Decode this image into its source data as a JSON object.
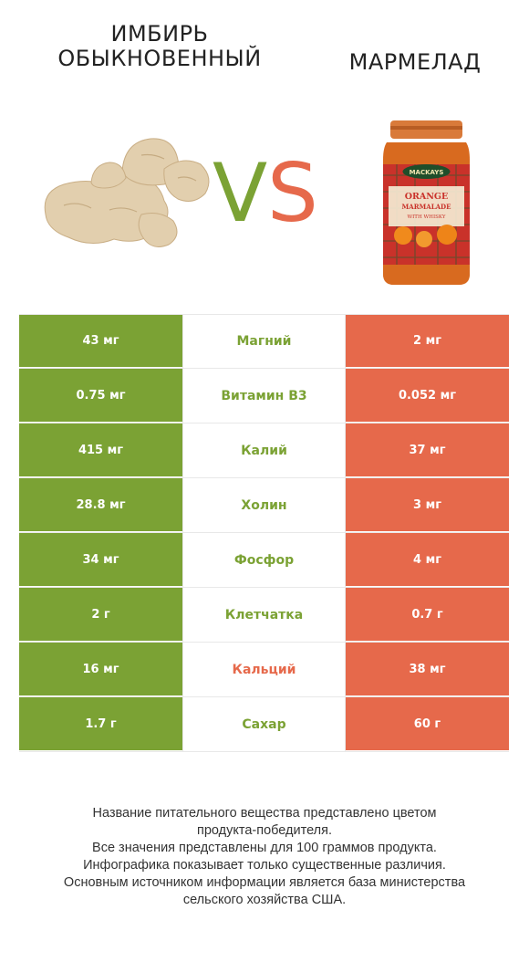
{
  "header": {
    "left_product": "ИМБИРЬ ОБЫКНОВЕННЫЙ",
    "right_product": "МАРМЕЛАД",
    "vs_v": "V",
    "vs_s": "S"
  },
  "jar_label": {
    "brand": "MACKAYS",
    "line1": "ORANGE",
    "line2": "MARMALADE",
    "line3": "WITH WHISKY"
  },
  "colors": {
    "left": "#7ba234",
    "right": "#e6694b"
  },
  "rows": [
    {
      "nutrient": "Магний",
      "left": "43 мг",
      "right": "2 мг",
      "winner": "left"
    },
    {
      "nutrient": "Витамин B3",
      "left": "0.75 мг",
      "right": "0.052 мг",
      "winner": "left"
    },
    {
      "nutrient": "Калий",
      "left": "415 мг",
      "right": "37 мг",
      "winner": "left"
    },
    {
      "nutrient": "Холин",
      "left": "28.8 мг",
      "right": "3 мг",
      "winner": "left"
    },
    {
      "nutrient": "Фосфор",
      "left": "34 мг",
      "right": "4 мг",
      "winner": "left"
    },
    {
      "nutrient": "Клетчатка",
      "left": "2 г",
      "right": "0.7 г",
      "winner": "left"
    },
    {
      "nutrient": "Кальций",
      "left": "16 мг",
      "right": "38 мг",
      "winner": "right"
    },
    {
      "nutrient": "Сахар",
      "left": "1.7 г",
      "right": "60 г",
      "winner": "left"
    }
  ],
  "footer": {
    "line1": "Название питательного вещества представлено цветом",
    "line2": "продукта-победителя.",
    "line3": "Все значения представлены для 100 граммов продукта.",
    "line4": "Инфографика показывает только существенные различия.",
    "line5": "Основным источником информации является база министерства",
    "line6": "сельского хозяйства США."
  }
}
